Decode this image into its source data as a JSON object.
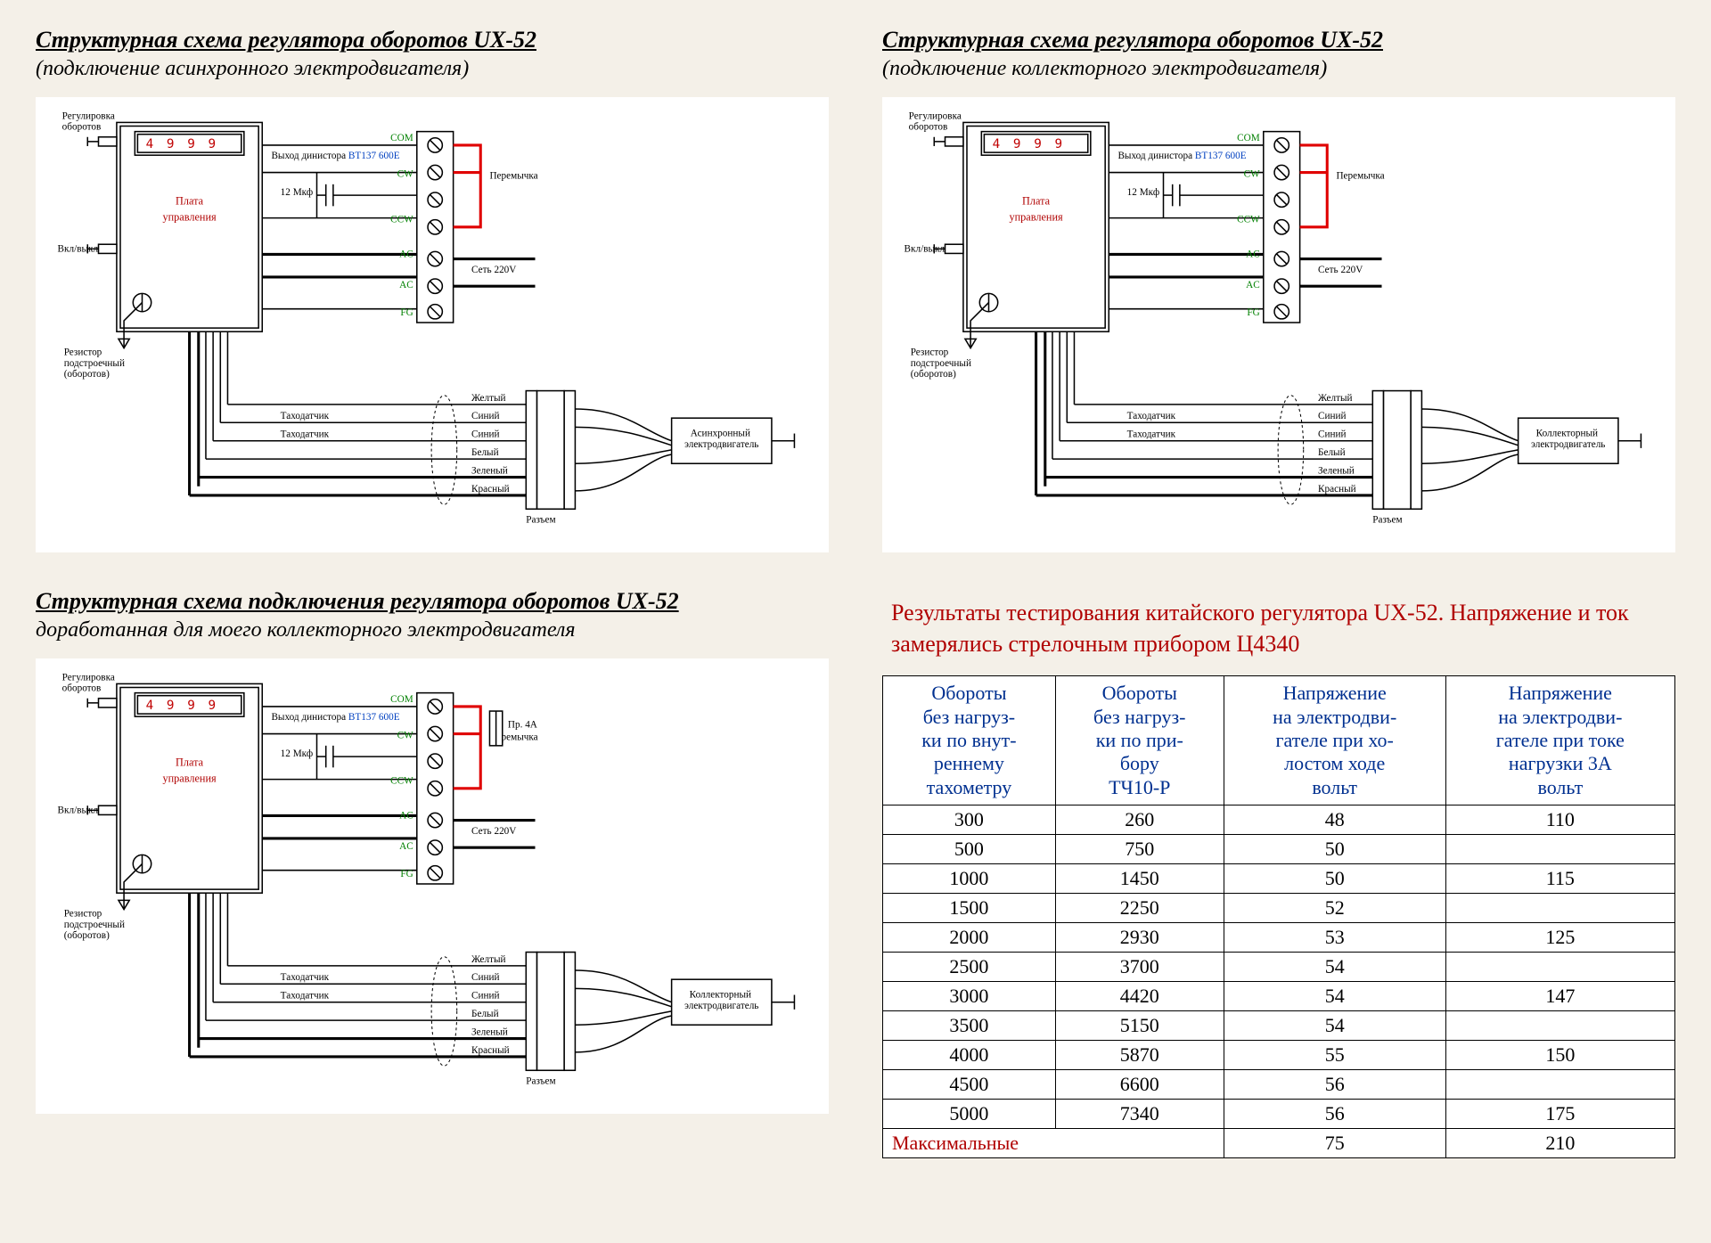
{
  "diagrams": {
    "d1": {
      "title": "Структурная схема регулятора оборотов UX-52",
      "subtitle": "(подключение асинхронного электродвигателя)",
      "motor_label": "Асинхронный\nэлектродвигатель",
      "has_fuse": false
    },
    "d2": {
      "title": "Структурная схема регулятора оборотов UX-52",
      "subtitle": "(подключение коллекторного электродвигателя)",
      "motor_label": "Коллекторный\nэлектродвигатель",
      "has_fuse": false
    },
    "d3": {
      "title": "Структурная схема подключения регулятора оборотов UX-52",
      "subtitle": "доработанная для моего  коллекторного электродвигателя",
      "motor_label": "Коллекторный\nэлектродвигатель",
      "has_fuse": true
    }
  },
  "common": {
    "seg_display": "4 9 9 9",
    "board_label1": "Плата",
    "board_label2": "управления",
    "reg_lbl1": "Регулировка",
    "reg_lbl2": "оборотов",
    "switch_lbl": "Вкл/выкл",
    "res_lbl1": "Резистор",
    "res_lbl2": "подстроечный",
    "res_lbl3": "(оборотов)",
    "dinistor_lbl": "Выход динистора",
    "dinistor_part": "BT137 600E",
    "cap_lbl": "12 Мкф",
    "jumper_lbl": "Перемычка",
    "mains_lbl": "Сеть 220V",
    "fuse_lbl": "Пр. 4A",
    "terminals": [
      "COM",
      "CW",
      "CCW",
      "AC",
      "AC",
      "FG"
    ],
    "tacho_lbl": "Таходатчик",
    "wire_colors": [
      "Желтый",
      "Синий",
      "Синий",
      "Белый",
      "Зеленый",
      "Красный"
    ],
    "connector_lbl": "Разъем"
  },
  "table_panel": {
    "title": "Результаты тестирования китайского регулятора UX-52. Напряжение и ток замерялись стрелочным прибором Ц4340",
    "columns": [
      "Обороты\nбез нагруз-\nки по внут-\nреннему\nтахометру",
      "Обороты\nбез нагруз-\nки по при-\nбору\nТЧ10-Р",
      "Напряжение\nна электродви-\nгателе при хо-\nлостом ходе\nвольт",
      "Напряжение\nна электродви-\nгателе при токе\nнагрузки 3А\nвольт"
    ],
    "rows": [
      [
        "300",
        "260",
        "48",
        "110"
      ],
      [
        "500",
        "750",
        "50",
        ""
      ],
      [
        "1000",
        "1450",
        "50",
        "115"
      ],
      [
        "1500",
        "2250",
        "52",
        ""
      ],
      [
        "2000",
        "2930",
        "53",
        "125"
      ],
      [
        "2500",
        "3700",
        "54",
        ""
      ],
      [
        "3000",
        "4420",
        "54",
        "147"
      ],
      [
        "3500",
        "5150",
        "54",
        ""
      ],
      [
        "4000",
        "5870",
        "55",
        "150"
      ],
      [
        "4500",
        "6600",
        "56",
        ""
      ],
      [
        "5000",
        "7340",
        "56",
        "175"
      ]
    ],
    "max_row_label": "Максимальные",
    "max_row": [
      "",
      "75",
      "210"
    ]
  },
  "colors": {
    "red": "#b00000",
    "blue": "#0040c0",
    "green": "#008000",
    "jumper": "#e00000",
    "bg": "#f4f0e8"
  }
}
